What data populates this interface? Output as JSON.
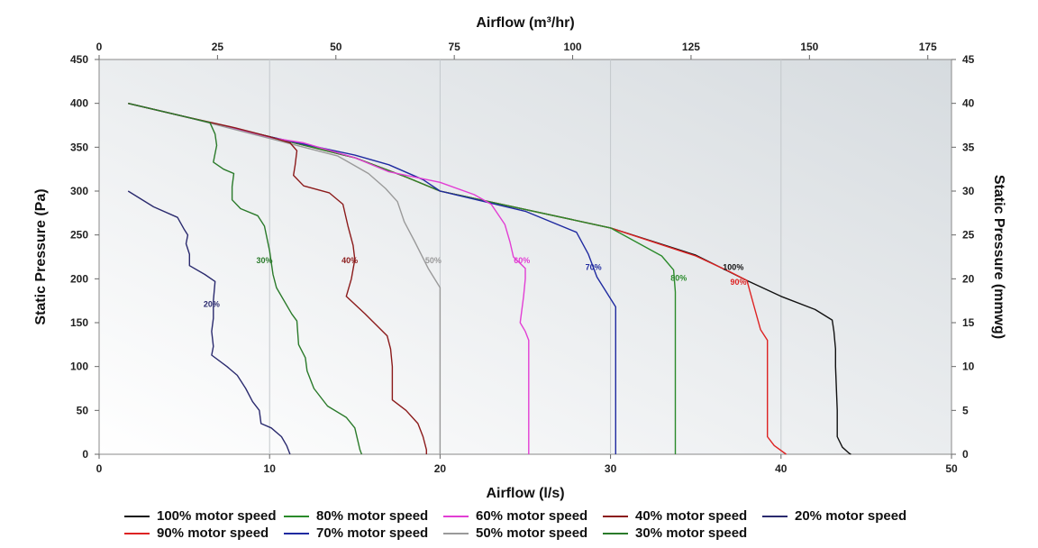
{
  "chart_data": {
    "type": "line",
    "x_bottom": {
      "label": "Airflow (l/s)",
      "range": [
        0,
        50
      ],
      "ticks": [
        "0",
        "10",
        "20",
        "30",
        "40",
        "50"
      ]
    },
    "x_top": {
      "label": "Airflow (m³/hr)",
      "range": [
        0,
        180
      ],
      "ticks": [
        "0",
        "25",
        "50",
        "75",
        "100",
        "125",
        "150",
        "175"
      ]
    },
    "y_left": {
      "label": "Static Pressure (Pa)",
      "range": [
        0,
        450
      ],
      "ticks": [
        "0",
        "50",
        "100",
        "150",
        "200",
        "250",
        "300",
        "350",
        "400",
        "450"
      ]
    },
    "y_right": {
      "label": "Static Pressure (mmwg)",
      "range": [
        0,
        45
      ],
      "ticks": [
        "0",
        "5",
        "10",
        "15",
        "20",
        "25",
        "30",
        "35",
        "40",
        "45"
      ]
    },
    "grid": "vertical",
    "legend_position": "bottom",
    "series": [
      {
        "name": "100% motor speed",
        "color": "#111111",
        "label": "100%",
        "label_at": [
          37.2,
          210
        ],
        "points": [
          [
            1.7,
            400
          ],
          [
            5,
            385
          ],
          [
            10,
            362
          ],
          [
            15,
            338
          ],
          [
            18,
            316
          ],
          [
            20,
            300
          ],
          [
            25,
            279
          ],
          [
            30,
            258
          ],
          [
            35,
            227
          ],
          [
            38,
            198
          ],
          [
            40,
            180
          ],
          [
            42,
            165
          ],
          [
            43,
            153
          ],
          [
            43.1,
            140
          ],
          [
            43.2,
            120
          ],
          [
            43.2,
            100
          ],
          [
            43.3,
            50
          ],
          [
            43.3,
            20
          ],
          [
            43.6,
            8
          ],
          [
            44,
            1
          ],
          [
            44.1,
            0
          ]
        ]
      },
      {
        "name": "90% motor speed",
        "color": "#dd2222",
        "label": "90%",
        "label_at": [
          37.5,
          193
        ],
        "points": [
          [
            1.7,
            400
          ],
          [
            5,
            385
          ],
          [
            10,
            362
          ],
          [
            15,
            338
          ],
          [
            18,
            316
          ],
          [
            20,
            300
          ],
          [
            25,
            279
          ],
          [
            30,
            258
          ],
          [
            35,
            226
          ],
          [
            37,
            208
          ],
          [
            38,
            198
          ],
          [
            38.4,
            170
          ],
          [
            38.8,
            142
          ],
          [
            39.2,
            130
          ],
          [
            39.2,
            100
          ],
          [
            39.2,
            40
          ],
          [
            39.2,
            20
          ],
          [
            39.6,
            10
          ],
          [
            40.3,
            0
          ]
        ]
      },
      {
        "name": "80% motor speed",
        "color": "#2a8a2a",
        "label": "80%",
        "label_at": [
          34,
          198
        ],
        "points": [
          [
            1.7,
            400
          ],
          [
            5,
            385
          ],
          [
            10,
            362
          ],
          [
            15,
            338
          ],
          [
            18,
            316
          ],
          [
            20,
            300
          ],
          [
            25,
            279
          ],
          [
            30,
            258
          ],
          [
            33,
            226
          ],
          [
            33.7,
            210
          ],
          [
            33.8,
            185
          ],
          [
            33.8,
            100
          ],
          [
            33.8,
            0
          ]
        ]
      },
      {
        "name": "70% motor speed",
        "color": "#1f2aa0",
        "label": "70%",
        "label_at": [
          29,
          210
        ],
        "points": [
          [
            1.7,
            400
          ],
          [
            5,
            385
          ],
          [
            10,
            362
          ],
          [
            15,
            341
          ],
          [
            17,
            330
          ],
          [
            19,
            313
          ],
          [
            20,
            300
          ],
          [
            25,
            277
          ],
          [
            28,
            253
          ],
          [
            28.7,
            228
          ],
          [
            29.2,
            202
          ],
          [
            30.3,
            168
          ],
          [
            30.3,
            100
          ],
          [
            30.3,
            0
          ]
        ]
      },
      {
        "name": "60% motor speed",
        "color": "#e23ed4",
        "label": "60%",
        "label_at": [
          24.8,
          218
        ],
        "points": [
          [
            1.7,
            400
          ],
          [
            5,
            385
          ],
          [
            10,
            361
          ],
          [
            12,
            355
          ],
          [
            15,
            338
          ],
          [
            17,
            322
          ],
          [
            20,
            310
          ],
          [
            22,
            296
          ],
          [
            23,
            285
          ],
          [
            23.8,
            262
          ],
          [
            24.1,
            242
          ],
          [
            24.3,
            225
          ],
          [
            25,
            212
          ],
          [
            25,
            200
          ],
          [
            24.9,
            180
          ],
          [
            24.7,
            150
          ],
          [
            25,
            140
          ],
          [
            25.2,
            130
          ],
          [
            25.2,
            0
          ]
        ]
      },
      {
        "name": "50% motor speed",
        "color": "#9a9a9a",
        "label": "50%",
        "label_at": [
          19.6,
          218
        ],
        "points": [
          [
            1.7,
            400
          ],
          [
            5,
            385
          ],
          [
            10,
            360
          ],
          [
            14,
            340
          ],
          [
            15.8,
            320
          ],
          [
            16.8,
            303
          ],
          [
            17.5,
            288
          ],
          [
            17.9,
            265
          ],
          [
            18.5,
            243
          ],
          [
            19.3,
            212
          ],
          [
            20,
            190
          ],
          [
            20,
            100
          ],
          [
            20,
            0
          ]
        ]
      },
      {
        "name": "40% motor speed",
        "color": "#8b1a1a",
        "label": "40%",
        "label_at": [
          14.7,
          218
        ],
        "points": [
          [
            1.7,
            400
          ],
          [
            5,
            385
          ],
          [
            8,
            372
          ],
          [
            10,
            362
          ],
          [
            11.2,
            355
          ],
          [
            11.6,
            346
          ],
          [
            11.5,
            330
          ],
          [
            11.4,
            318
          ],
          [
            12,
            306
          ],
          [
            13.5,
            298
          ],
          [
            14.3,
            285
          ],
          [
            14.6,
            260
          ],
          [
            14.9,
            238
          ],
          [
            15,
            222
          ],
          [
            14.8,
            200
          ],
          [
            14.5,
            180
          ],
          [
            15.6,
            160
          ],
          [
            16.9,
            135
          ],
          [
            17.1,
            120
          ],
          [
            17.2,
            100
          ],
          [
            17.2,
            62
          ],
          [
            18,
            50
          ],
          [
            18.7,
            35
          ],
          [
            19,
            20
          ],
          [
            19.2,
            5
          ],
          [
            19.2,
            0
          ]
        ]
      },
      {
        "name": "30% motor speed",
        "color": "#2a7a2a",
        "label": "30%",
        "label_at": [
          9.7,
          218
        ],
        "points": [
          [
            1.7,
            400
          ],
          [
            5,
            385
          ],
          [
            6.5,
            378
          ],
          [
            6.8,
            365
          ],
          [
            6.9,
            352
          ],
          [
            6.7,
            333
          ],
          [
            7.3,
            325
          ],
          [
            7.9,
            320
          ],
          [
            7.8,
            305
          ],
          [
            7.8,
            290
          ],
          [
            8.3,
            280
          ],
          [
            9.3,
            272
          ],
          [
            9.7,
            260
          ],
          [
            10,
            232
          ],
          [
            10.2,
            205
          ],
          [
            10.4,
            190
          ],
          [
            11.3,
            160
          ],
          [
            11.6,
            152
          ],
          [
            11.7,
            125
          ],
          [
            12.1,
            110
          ],
          [
            12.2,
            95
          ],
          [
            12.6,
            75
          ],
          [
            13.4,
            55
          ],
          [
            14.5,
            42
          ],
          [
            15,
            30
          ],
          [
            15.3,
            5
          ],
          [
            15.4,
            0
          ]
        ]
      },
      {
        "name": "20% motor speed",
        "color": "#2a2a6e",
        "label": "20%",
        "label_at": [
          6.6,
          168
        ],
        "points": [
          [
            1.7,
            300
          ],
          [
            3.2,
            282
          ],
          [
            4.6,
            270
          ],
          [
            5,
            256
          ],
          [
            5.2,
            250
          ],
          [
            5.1,
            240
          ],
          [
            5.3,
            228
          ],
          [
            5.3,
            215
          ],
          [
            6.2,
            205
          ],
          [
            6.8,
            197
          ],
          [
            6.7,
            175
          ],
          [
            6.7,
            155
          ],
          [
            6.6,
            140
          ],
          [
            6.7,
            123
          ],
          [
            6.6,
            113
          ],
          [
            7.5,
            100
          ],
          [
            8.1,
            90
          ],
          [
            8.6,
            75
          ],
          [
            9,
            60
          ],
          [
            9.4,
            50
          ],
          [
            9.5,
            35
          ],
          [
            10.1,
            30
          ],
          [
            10.7,
            20
          ],
          [
            11,
            10
          ],
          [
            11.2,
            0
          ]
        ]
      }
    ]
  },
  "legend": {
    "rows": [
      [
        0,
        2,
        4,
        6,
        8
      ],
      [
        1,
        3,
        5,
        7
      ]
    ]
  }
}
